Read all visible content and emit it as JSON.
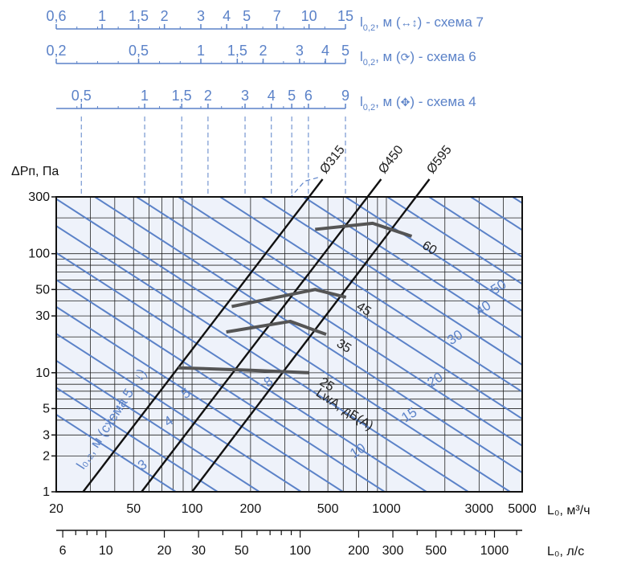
{
  "chart_data": {
    "type": "line",
    "x_axis": {
      "label": "L₀, м³/ч",
      "scale": "log",
      "range": [
        20,
        5000
      ],
      "tick_labels": [
        "20",
        "50",
        "100",
        "200",
        "500",
        "1000",
        "3000",
        "5000"
      ],
      "ticks": [
        20,
        50,
        100,
        200,
        500,
        1000,
        3000,
        5000
      ]
    },
    "x_axis_ls": {
      "label": "L₀, л/с",
      "tick_labels": [
        "6",
        "10",
        "20",
        "30",
        "50",
        "100",
        "200",
        "300",
        "500",
        "1000"
      ],
      "ticks": [
        6,
        10,
        20,
        30,
        50,
        100,
        200,
        300,
        500,
        1000
      ]
    },
    "y_axis": {
      "label": "ΔPп, Па",
      "scale": "log",
      "range": [
        1,
        300
      ],
      "tick_labels": [
        "1",
        "2",
        "3",
        "5",
        "10",
        "30",
        "50",
        "100",
        "300"
      ],
      "ticks": [
        1,
        2,
        3,
        5,
        10,
        30,
        50,
        100,
        300
      ]
    },
    "diameter_lines": [
      {
        "name": "Ø315",
        "points": [
          [
            27.5,
            1
          ],
          [
            400,
            300
          ]
        ]
      },
      {
        "name": "Ø450",
        "points": [
          [
            55,
            1
          ],
          [
            800,
            300
          ]
        ]
      },
      {
        "name": "Ø595",
        "points": [
          [
            100,
            1
          ],
          [
            1420,
            300
          ]
        ]
      }
    ],
    "throw_lines": {
      "labels": [
        "3",
        "4",
        "5",
        "8",
        "10",
        "15",
        "20",
        "30",
        "40",
        "50"
      ],
      "label_positions": [
        [
          55,
          1.5
        ],
        [
          75,
          3.5
        ],
        [
          92,
          6
        ],
        [
          245,
          7.5
        ],
        [
          680,
          1.9
        ],
        [
          1250,
          3.8
        ],
        [
          1700,
          7.5
        ],
        [
          2150,
          17
        ],
        [
          3000,
          30
        ],
        [
          3600,
          45
        ]
      ]
    },
    "noise_lines": {
      "title": "LwA, дБ(А)",
      "levels": [
        {
          "label": "25",
          "points": [
            [
              85,
              11
            ],
            [
              200,
              10.5
            ],
            [
              400,
              10
            ]
          ]
        },
        {
          "label": "35",
          "points": [
            [
              150,
              22
            ],
            [
              320,
              27
            ],
            [
              490,
              21
            ]
          ]
        },
        {
          "label": "45",
          "points": [
            [
              160,
              36
            ],
            [
              430,
              50
            ],
            [
              620,
              43
            ]
          ]
        },
        {
          "label": "60",
          "points": [
            [
              430,
              160
            ],
            [
              850,
              180
            ],
            [
              1350,
              140
            ]
          ]
        }
      ]
    },
    "throw_scale_label": "l₀,₂, м (схема 5 - ↓)",
    "top_scales": [
      {
        "name": "схема 7",
        "legend_prefix": "l",
        "legend_sub": "0,2",
        "legend_unit": ", м (",
        "legend_glyph": "↔↕",
        "legend_suffix": ") - схема 7",
        "labels": [
          "0,6",
          "1",
          "1,5",
          "2",
          "3",
          "4",
          "5",
          "7",
          "10",
          "15"
        ],
        "values": [
          0.6,
          1,
          1.5,
          2,
          3,
          4,
          5,
          7,
          10,
          15
        ],
        "range": [
          0.6,
          15
        ]
      },
      {
        "name": "схема 6",
        "legend_prefix": "l",
        "legend_sub": "0,2",
        "legend_unit": ", м (",
        "legend_glyph": "⟳",
        "legend_suffix": ") - схема 6",
        "labels": [
          "0,2",
          "0,5",
          "1",
          "1,5",
          "2",
          "3",
          "4",
          "5"
        ],
        "values": [
          0.2,
          0.5,
          1,
          1.5,
          2,
          3,
          4,
          5
        ],
        "range": [
          0.2,
          5
        ]
      },
      {
        "name": "схема 4",
        "legend_prefix": "l",
        "legend_sub": "0,2",
        "legend_unit": ", м (",
        "legend_glyph": "✥",
        "legend_suffix": ") - схема 4",
        "labels": [
          "0,5",
          "1",
          "1,5",
          "2",
          "3",
          "4",
          "5",
          "6",
          "9"
        ],
        "values": [
          0.5,
          1,
          1.5,
          2,
          3,
          4,
          5,
          6,
          9
        ],
        "range": [
          0.38,
          9
        ]
      }
    ],
    "grid": true
  }
}
